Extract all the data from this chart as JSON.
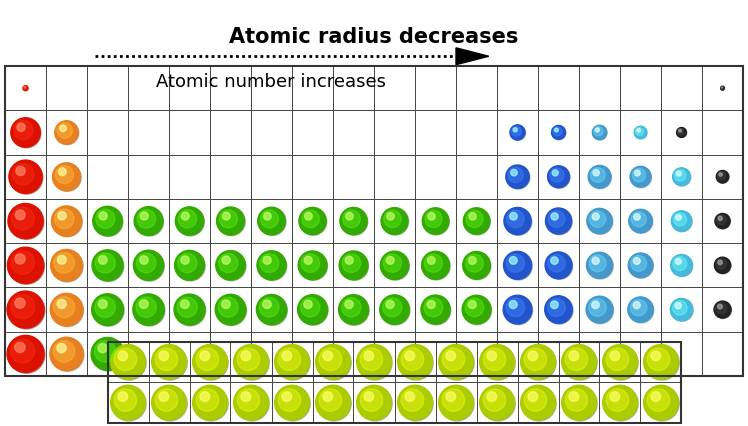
{
  "title": "Atomic radius decreases",
  "subtitle": "Atomic number increases",
  "background_color": "#ffffff",
  "border_color": "#333333",
  "grid_color": "#444444",
  "title_fontsize": 15,
  "subtitle_fontsize": 13,
  "colors": {
    "red": "#dd1100",
    "orange": "#e88020",
    "green": "#33aa00",
    "dark_blue": "#2255cc",
    "medium_blue": "#4499cc",
    "light_blue": "#44bbdd",
    "dark_gray": "#222222",
    "yellow_green": "#aacc00"
  },
  "fig_width": 7.48,
  "fig_height": 4.27,
  "dpi": 100
}
